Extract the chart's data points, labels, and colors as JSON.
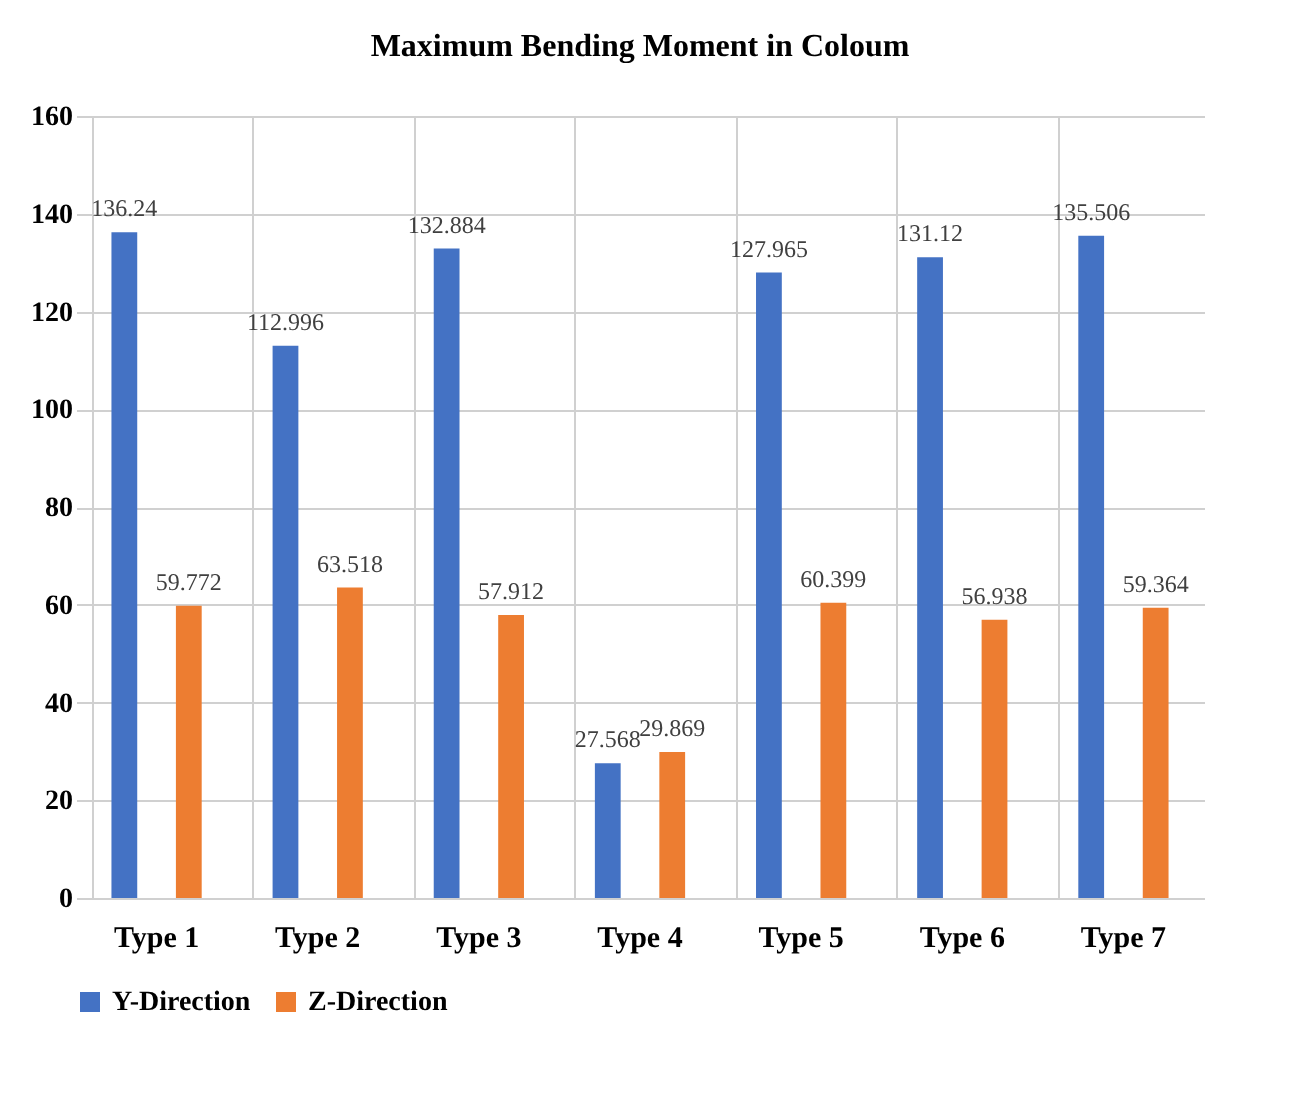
{
  "chart_data": {
    "type": "bar",
    "title": "Maximum Bending Moment in Coloum",
    "categories": [
      "Type 1",
      "Type 2",
      "Type 3",
      "Type 4",
      "Type 5",
      "Type 6",
      "Type 7"
    ],
    "series": [
      {
        "name": "Y-Direction",
        "color": "#4472c4",
        "values": [
          136.24,
          112.996,
          132.884,
          27.568,
          127.965,
          131.12,
          135.506
        ]
      },
      {
        "name": "Z-Direction",
        "color": "#ed7d31",
        "values": [
          59.772,
          63.518,
          57.912,
          29.869,
          60.399,
          56.938,
          59.364
        ]
      }
    ],
    "ylim": [
      0,
      160
    ],
    "yticks": [
      0,
      20,
      40,
      60,
      80,
      100,
      120,
      140,
      160
    ],
    "grid": true,
    "legend": "bottom",
    "data_labels": true
  }
}
